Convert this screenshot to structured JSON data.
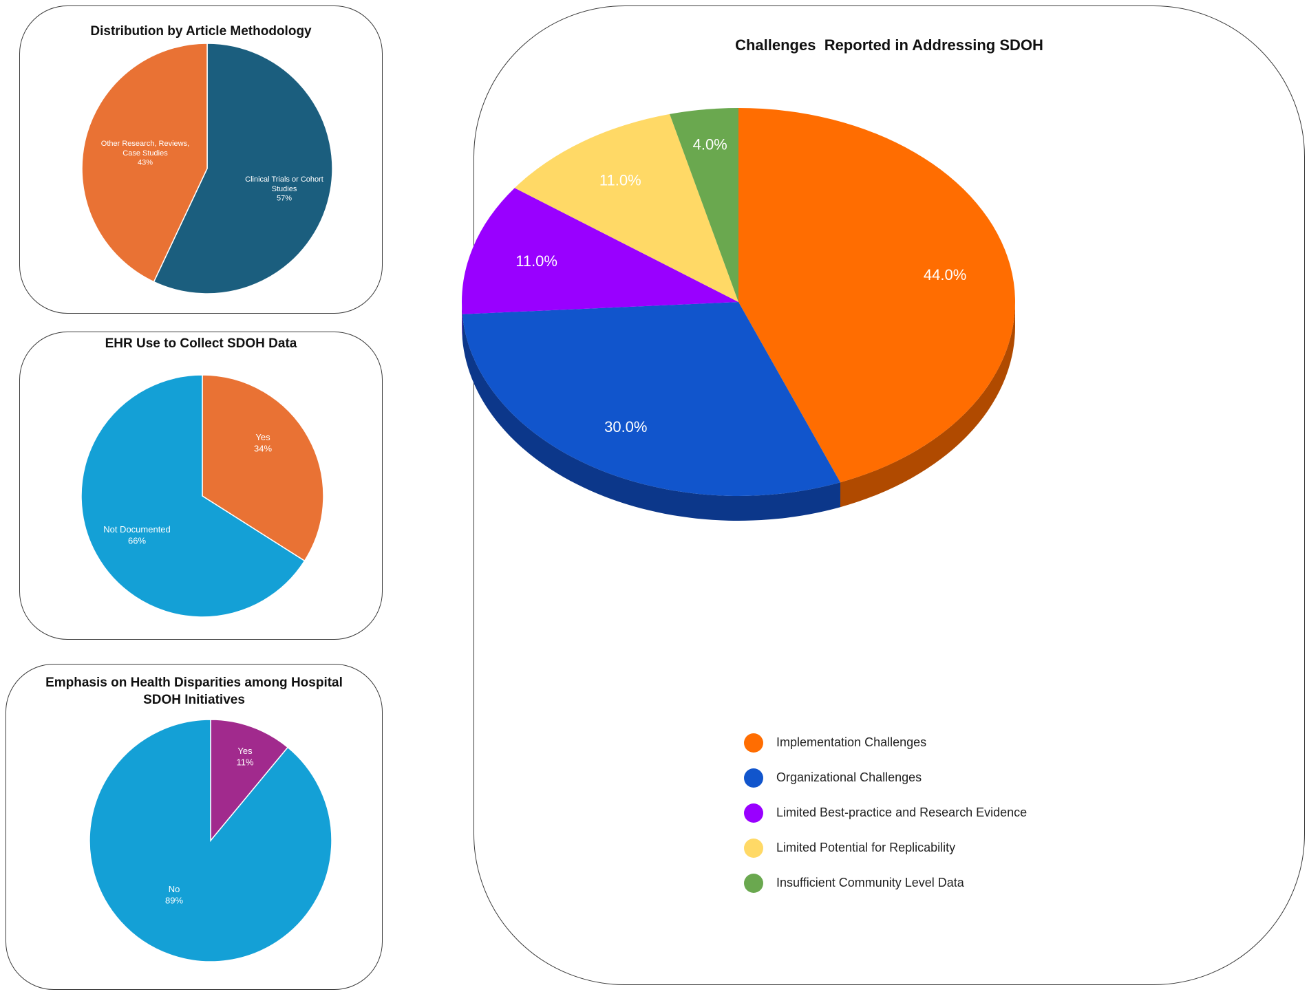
{
  "chart_data": [
    {
      "type": "pie",
      "title": "Distribution by Article Methodology",
      "slices": [
        {
          "label": "Clinical Trials or Cohort Studies",
          "lines": [
            "Clinical Trials or Cohort",
            "Studies"
          ],
          "value": 57,
          "display": "57%",
          "color": "#1b5e7e"
        },
        {
          "label": "Other Research, Reviews, Case Studies",
          "lines": [
            "Other Research, Reviews,",
            "Case Studies"
          ],
          "value": 43,
          "display": "43%",
          "color": "#e97234"
        }
      ]
    },
    {
      "type": "pie",
      "title": "EHR Use to Collect SDOH Data",
      "slices": [
        {
          "label": "Yes",
          "lines": [
            "Yes"
          ],
          "value": 34,
          "display": "34%",
          "color": "#e97234"
        },
        {
          "label": "Not Documented",
          "lines": [
            "Not Documented"
          ],
          "value": 66,
          "display": "66%",
          "color": "#14a0d6"
        }
      ]
    },
    {
      "type": "pie",
      "title": "Emphasis on Health Disparities among Hospital SDOH Initiatives",
      "title_lines": [
        "Emphasis on Health Disparities among Hospital",
        "SDOH Initiatives"
      ],
      "slices": [
        {
          "label": "Yes",
          "lines": [
            "Yes"
          ],
          "value": 11,
          "display": "11%",
          "color": "#a12a8d"
        },
        {
          "label": "No",
          "lines": [
            "No"
          ],
          "value": 89,
          "display": "89%",
          "color": "#14a0d6"
        }
      ]
    },
    {
      "type": "pie",
      "title": "Challenges  Reported in Addressing SDOH",
      "three_d": true,
      "legend_position": "bottom",
      "slices": [
        {
          "label": "Implementation Challenges",
          "value": 44.0,
          "display": "44.0%",
          "color": "#ff6d01",
          "side_color": "#b04a00"
        },
        {
          "label": "Organizational Challenges",
          "value": 30.0,
          "display": "30.0%",
          "color": "#1155cc",
          "side_color": "#0c378a"
        },
        {
          "label": "Limited Best-practice and Research Evidence",
          "value": 11.0,
          "display": "11.0%",
          "color": "#9900ff",
          "side_color": "#6600aa"
        },
        {
          "label": "Limited Potential for Replicability",
          "value": 11.0,
          "display": "11.0%",
          "color": "#ffd966",
          "side_color": "#c9a83f"
        },
        {
          "label": "Insufficient Community Level Data",
          "value": 4.0,
          "display": "4.0%",
          "color": "#6aa84f",
          "side_color": "#46732f"
        }
      ]
    }
  ]
}
